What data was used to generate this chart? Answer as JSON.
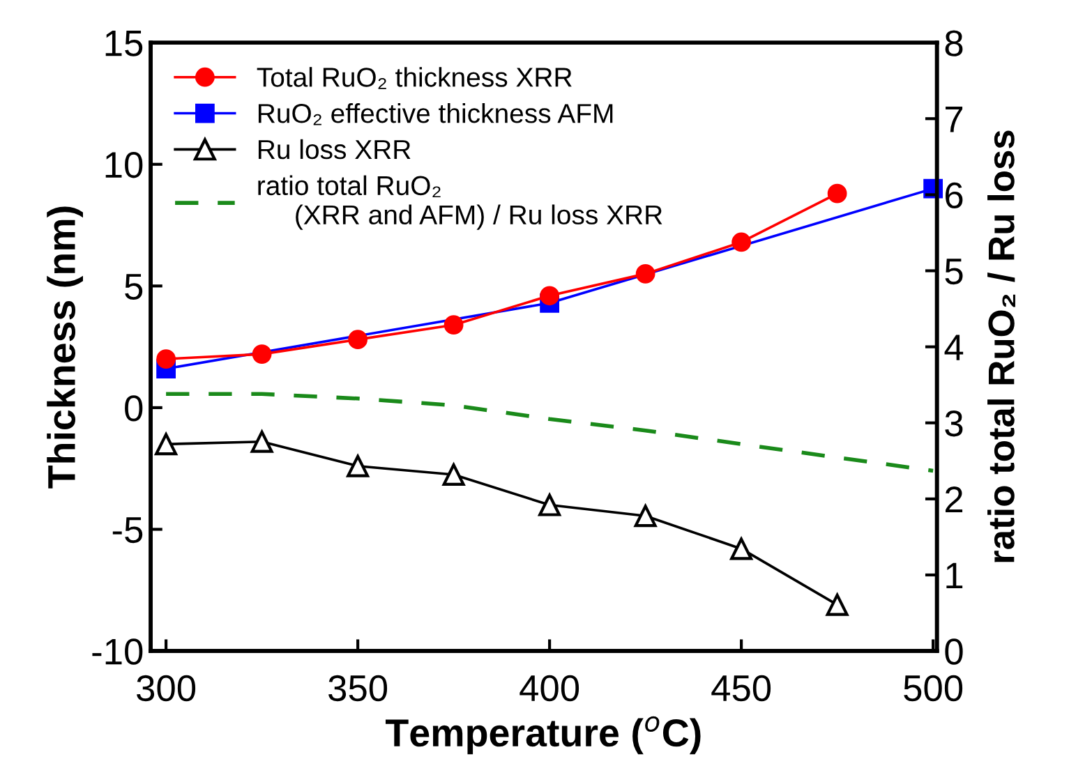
{
  "chart_data": {
    "type": "line",
    "xlabel": "Temperature ($^{o}$C)",
    "ylabel": "Thickness (nm)",
    "y2label": "ratio total RuO₂ / Ru loss",
    "xlim": [
      296,
      501
    ],
    "xticks": [
      300,
      350,
      400,
      450,
      500
    ],
    "ylim": [
      -10,
      15
    ],
    "yticks": [
      -10,
      -5,
      0,
      5,
      10,
      15
    ],
    "y2lim": [
      0,
      8
    ],
    "y2ticks": [
      0,
      1,
      2,
      3,
      4,
      5,
      6,
      7,
      8
    ],
    "grid": false,
    "legend": "top left",
    "series": [
      {
        "name": "Total RuO₂ thickness XRR",
        "color": "#ff0000",
        "marker": "circle",
        "line_style": "solid",
        "x": [
          300,
          325,
          350,
          375,
          400,
          425,
          450,
          475
        ],
        "values": [
          2.0,
          2.2,
          2.8,
          3.4,
          4.6,
          5.5,
          6.8,
          8.8
        ]
      },
      {
        "name": "RuO₂ effective thickness AFM",
        "color": "#0000ff",
        "marker": "square",
        "line_style": "solid",
        "x": [
          300,
          400,
          500
        ],
        "values": [
          1.6,
          4.3,
          9.0
        ]
      },
      {
        "name": "Ru loss XRR",
        "color": "#000000",
        "marker": "triangle",
        "line_style": "solid",
        "x": [
          300,
          325,
          350,
          375,
          400,
          425,
          450,
          475
        ],
        "values": [
          -1.5,
          -1.4,
          -2.4,
          -2.75,
          -4.0,
          -4.45,
          -5.8,
          -8.1
        ]
      },
      {
        "name": "ratio total RuO₂\n     (XRR and AFM) / Ru loss XRR",
        "color": "#1a8a1a",
        "marker": "none",
        "line_style": "dashed",
        "axis": "y2",
        "x": [
          300,
          325,
          350,
          375,
          400,
          425,
          450,
          500
        ],
        "values": [
          3.38,
          3.38,
          3.32,
          3.23,
          3.05,
          2.9,
          2.72,
          2.37
        ]
      }
    ]
  }
}
